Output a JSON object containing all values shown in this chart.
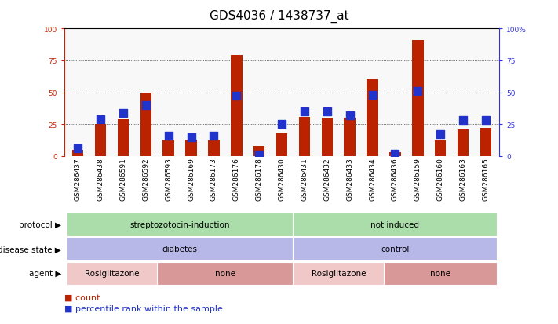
{
  "title": "GDS4036 / 1438737_at",
  "samples": [
    "GSM286437",
    "GSM286438",
    "GSM286591",
    "GSM286592",
    "GSM286593",
    "GSM286169",
    "GSM286173",
    "GSM286176",
    "GSM286178",
    "GSM286430",
    "GSM286431",
    "GSM286432",
    "GSM286433",
    "GSM286434",
    "GSM286436",
    "GSM286159",
    "GSM286160",
    "GSM286163",
    "GSM286165"
  ],
  "count": [
    5,
    25,
    29,
    50,
    12,
    13,
    13,
    79,
    8,
    18,
    31,
    30,
    30,
    60,
    3,
    91,
    12,
    21,
    22
  ],
  "percentile": [
    6,
    29,
    34,
    40,
    16,
    15,
    16,
    47,
    1,
    25,
    35,
    35,
    32,
    48,
    2,
    51,
    17,
    28,
    28
  ],
  "ylim": [
    0,
    100
  ],
  "yticks": [
    0,
    25,
    50,
    75,
    100
  ],
  "bar_color": "#bb2200",
  "dot_color": "#2233cc",
  "protocol_groups": [
    {
      "label": "streptozotocin-induction",
      "start": 0,
      "end": 10,
      "color": "#aaddaa"
    },
    {
      "label": "not induced",
      "start": 10,
      "end": 19,
      "color": "#aaddaa"
    }
  ],
  "disease_groups": [
    {
      "label": "diabetes",
      "start": 0,
      "end": 10,
      "color": "#b8b8e8"
    },
    {
      "label": "control",
      "start": 10,
      "end": 19,
      "color": "#b8b8e8"
    }
  ],
  "agent_groups": [
    {
      "label": "Rosiglitazone",
      "start": 0,
      "end": 4,
      "color": "#f0c8c8"
    },
    {
      "label": "none",
      "start": 4,
      "end": 10,
      "color": "#d89898"
    },
    {
      "label": "Rosiglitazone",
      "start": 10,
      "end": 14,
      "color": "#f0c8c8"
    },
    {
      "label": "none",
      "start": 14,
      "end": 19,
      "color": "#d89898"
    }
  ],
  "row_labels": [
    "protocol",
    "disease state",
    "agent"
  ],
  "legend_count_label": "count",
  "legend_pct_label": "percentile rank within the sample",
  "title_fontsize": 11,
  "tick_fontsize": 6.5,
  "annot_fontsize": 7.5,
  "right_axis_color": "#3333dd",
  "left_axis_color": "#cc2200",
  "plot_bg": "#f8f8f8"
}
